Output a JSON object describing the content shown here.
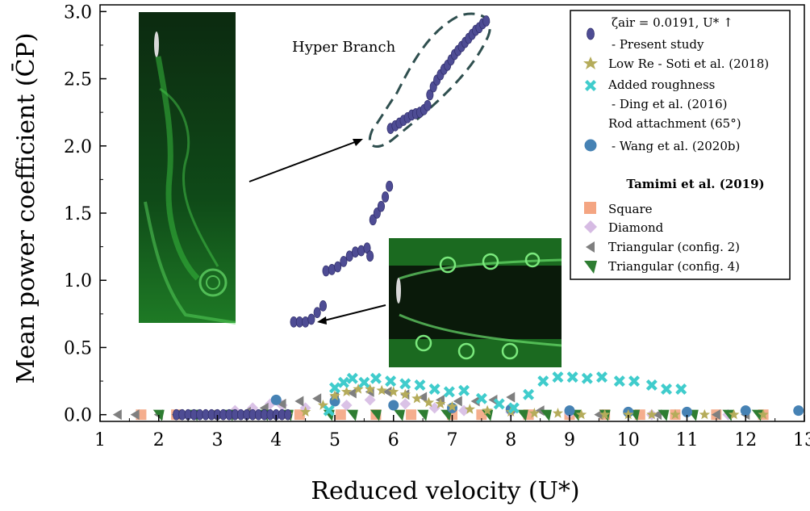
{
  "chart_data": {
    "type": "scatter",
    "xlabel": "Reduced velocity (U*)",
    "ylabel": "Mean power coefficient (C̄P)",
    "xlim": [
      1,
      13
    ],
    "ylim": [
      -0.05,
      3.05
    ],
    "x_ticks": [
      1,
      2,
      3,
      4,
      5,
      6,
      7,
      8,
      9,
      10,
      11,
      12,
      13
    ],
    "y_ticks": [
      0.0,
      0.5,
      1.0,
      1.5,
      2.0,
      2.5,
      3.0
    ],
    "x_tick_labels": [
      "1",
      "2",
      "3",
      "4",
      "5",
      "6",
      "7",
      "8",
      "9",
      "10",
      "11",
      "12",
      "13"
    ],
    "y_tick_labels": [
      "0.0",
      "0.5",
      "1.0",
      "1.5",
      "2.0",
      "2.5",
      "3.0"
    ],
    "grid": false,
    "legend_position": "top-right",
    "legend_header": "ζair = 0.0191, U* ↑",
    "legend_group_title": "Tamimi et al. (2019)",
    "annotations": [
      "Hyper Branch"
    ],
    "series": [
      {
        "name": "- Present study",
        "marker": "ellipse",
        "color": "#4e4c94",
        "points": [
          [
            2.3,
            0
          ],
          [
            2.4,
            0
          ],
          [
            2.5,
            0
          ],
          [
            2.6,
            0
          ],
          [
            2.7,
            0
          ],
          [
            2.8,
            0
          ],
          [
            2.9,
            0
          ],
          [
            3.0,
            0
          ],
          [
            3.1,
            0
          ],
          [
            3.2,
            0
          ],
          [
            3.3,
            0
          ],
          [
            3.4,
            0
          ],
          [
            3.5,
            0
          ],
          [
            3.6,
            0
          ],
          [
            3.7,
            0
          ],
          [
            3.8,
            0
          ],
          [
            3.9,
            0
          ],
          [
            4.0,
            0
          ],
          [
            4.1,
            0
          ],
          [
            4.2,
            0
          ],
          [
            4.3,
            0.69
          ],
          [
            4.4,
            0.69
          ],
          [
            4.5,
            0.69
          ],
          [
            4.6,
            0.71
          ],
          [
            4.7,
            0.76
          ],
          [
            4.8,
            0.81
          ],
          [
            4.85,
            1.07
          ],
          [
            4.95,
            1.08
          ],
          [
            5.05,
            1.1
          ],
          [
            5.15,
            1.14
          ],
          [
            5.25,
            1.18
          ],
          [
            5.35,
            1.21
          ],
          [
            5.45,
            1.22
          ],
          [
            5.55,
            1.24
          ],
          [
            5.6,
            1.18
          ],
          [
            5.65,
            1.45
          ],
          [
            5.72,
            1.5
          ],
          [
            5.79,
            1.55
          ],
          [
            5.86,
            1.62
          ],
          [
            5.93,
            1.7
          ],
          [
            5.95,
            2.13
          ],
          [
            6.03,
            2.15
          ],
          [
            6.1,
            2.17
          ],
          [
            6.17,
            2.19
          ],
          [
            6.24,
            2.21
          ],
          [
            6.31,
            2.23
          ],
          [
            6.38,
            2.24
          ],
          [
            6.45,
            2.25
          ],
          [
            6.52,
            2.27
          ],
          [
            6.58,
            2.3
          ],
          [
            6.62,
            2.38
          ],
          [
            6.68,
            2.44
          ],
          [
            6.74,
            2.49
          ],
          [
            6.8,
            2.53
          ],
          [
            6.86,
            2.57
          ],
          [
            6.92,
            2.6
          ],
          [
            6.98,
            2.64
          ],
          [
            7.04,
            2.68
          ],
          [
            7.1,
            2.71
          ],
          [
            7.16,
            2.74
          ],
          [
            7.22,
            2.77
          ],
          [
            7.28,
            2.8
          ],
          [
            7.34,
            2.83
          ],
          [
            7.4,
            2.86
          ],
          [
            7.46,
            2.88
          ],
          [
            7.52,
            2.91
          ],
          [
            7.58,
            2.93
          ]
        ]
      },
      {
        "name": "Low Re - Soti et al. (2018)",
        "marker": "star",
        "color": "#b5ac5b",
        "points": [
          [
            3.0,
            0
          ],
          [
            3.3,
            0
          ],
          [
            3.6,
            0
          ],
          [
            3.9,
            0
          ],
          [
            4.2,
            0
          ],
          [
            4.5,
            0.02
          ],
          [
            4.8,
            0.07
          ],
          [
            5.0,
            0.14
          ],
          [
            5.2,
            0.17
          ],
          [
            5.4,
            0.19
          ],
          [
            5.6,
            0.19
          ],
          [
            5.8,
            0.18
          ],
          [
            6.0,
            0.17
          ],
          [
            6.2,
            0.15
          ],
          [
            6.4,
            0.12
          ],
          [
            6.6,
            0.09
          ],
          [
            6.8,
            0.08
          ],
          [
            7.0,
            0.06
          ],
          [
            7.3,
            0.04
          ],
          [
            7.6,
            0.03
          ],
          [
            8.0,
            0.02
          ],
          [
            8.4,
            0.01
          ],
          [
            8.8,
            0.01
          ],
          [
            9.2,
            0
          ],
          [
            9.6,
            0
          ],
          [
            10.0,
            0
          ],
          [
            10.4,
            0
          ],
          [
            10.8,
            0
          ],
          [
            11.3,
            0
          ],
          [
            11.8,
            0
          ],
          [
            12.3,
            0
          ]
        ]
      },
      {
        "name": "Added roughness",
        "marker": "x",
        "color": "#40cccc",
        "points": [
          [
            4.9,
            0.03
          ],
          [
            5.0,
            0.2
          ],
          [
            5.15,
            0.24
          ],
          [
            5.3,
            0.27
          ],
          [
            5.5,
            0.24
          ],
          [
            5.7,
            0.27
          ],
          [
            5.95,
            0.25
          ],
          [
            6.2,
            0.23
          ],
          [
            6.45,
            0.22
          ],
          [
            6.7,
            0.19
          ],
          [
            6.95,
            0.17
          ],
          [
            7.2,
            0.18
          ],
          [
            7.5,
            0.12
          ],
          [
            7.8,
            0.08
          ],
          [
            8.05,
            0.05
          ],
          [
            8.3,
            0.15
          ],
          [
            8.55,
            0.25
          ],
          [
            8.8,
            0.28
          ],
          [
            9.05,
            0.28
          ],
          [
            9.3,
            0.27
          ],
          [
            9.55,
            0.28
          ],
          [
            9.85,
            0.25
          ],
          [
            10.1,
            0.25
          ],
          [
            10.4,
            0.22
          ],
          [
            10.65,
            0.19
          ],
          [
            10.9,
            0.19
          ]
        ]
      },
      {
        "name": "- Wang et al. (2020b)",
        "marker": "circle",
        "color": "#4682b4",
        "points": [
          [
            4.0,
            0.11
          ],
          [
            5.0,
            0.1
          ],
          [
            6.0,
            0.07
          ],
          [
            7.0,
            0.05
          ],
          [
            8.0,
            0.04
          ],
          [
            9.0,
            0.03
          ],
          [
            10.0,
            0.02
          ],
          [
            11.0,
            0.02
          ],
          [
            12.0,
            0.03
          ],
          [
            12.9,
            0.03
          ]
        ]
      },
      {
        "name": "Square",
        "marker": "square",
        "color": "#f4a582",
        "points": [
          [
            1.7,
            0
          ],
          [
            2.3,
            0
          ],
          [
            4.4,
            0
          ],
          [
            5.1,
            0
          ],
          [
            5.7,
            0
          ],
          [
            6.3,
            0
          ],
          [
            7.0,
            0
          ],
          [
            7.5,
            0
          ],
          [
            8.3,
            0
          ],
          [
            9.0,
            0
          ],
          [
            9.6,
            0
          ],
          [
            10.2,
            0
          ],
          [
            10.8,
            0
          ],
          [
            11.5,
            0
          ],
          [
            12.3,
            0
          ]
        ]
      },
      {
        "name": "Diamond",
        "marker": "diamond",
        "color": "#d6bbe3",
        "points": [
          [
            2.5,
            0
          ],
          [
            3.3,
            0.03
          ],
          [
            3.6,
            0.05
          ],
          [
            3.9,
            0.08
          ],
          [
            4.1,
            0.07
          ],
          [
            4.5,
            0.05
          ],
          [
            5.2,
            0.07
          ],
          [
            5.6,
            0.11
          ],
          [
            6.2,
            0.08
          ],
          [
            6.7,
            0.05
          ],
          [
            7.2,
            0.03
          ],
          [
            8.0,
            0.02
          ],
          [
            9.0,
            0.01
          ],
          [
            10.4,
            0
          ],
          [
            11.7,
            0
          ]
        ]
      },
      {
        "name": "Triangular (config. 2)",
        "marker": "tri-left",
        "color": "#7f7f7f",
        "points": [
          [
            1.3,
            0
          ],
          [
            1.6,
            0
          ],
          [
            2.0,
            0
          ],
          [
            2.3,
            0
          ],
          [
            2.6,
            0
          ],
          [
            2.9,
            0
          ],
          [
            3.2,
            0
          ],
          [
            3.5,
            0.02
          ],
          [
            3.8,
            0.05
          ],
          [
            4.1,
            0.08
          ],
          [
            4.4,
            0.1
          ],
          [
            4.7,
            0.12
          ],
          [
            5.0,
            0.14
          ],
          [
            5.3,
            0.16
          ],
          [
            5.6,
            0.17
          ],
          [
            5.9,
            0.17
          ],
          [
            6.2,
            0.15
          ],
          [
            6.5,
            0.13
          ],
          [
            6.8,
            0.11
          ],
          [
            7.1,
            0.1
          ],
          [
            7.4,
            0.1
          ],
          [
            7.7,
            0.11
          ],
          [
            8.0,
            0.13
          ],
          [
            8.5,
            0.03
          ],
          [
            9.5,
            0
          ],
          [
            10.5,
            0
          ],
          [
            11.5,
            0
          ],
          [
            12.0,
            0
          ]
        ]
      },
      {
        "name": "Triangular (config. 4)",
        "marker": "tri-down-left",
        "color": "#2e7d32",
        "points": [
          [
            2.0,
            0
          ],
          [
            2.6,
            0
          ],
          [
            3.2,
            0
          ],
          [
            3.8,
            0
          ],
          [
            4.2,
            0
          ],
          [
            4.9,
            0
          ],
          [
            5.3,
            0
          ],
          [
            5.7,
            0
          ],
          [
            6.1,
            0
          ],
          [
            6.5,
            0
          ],
          [
            6.9,
            0
          ],
          [
            7.6,
            0
          ],
          [
            8.2,
            0
          ],
          [
            8.6,
            0
          ],
          [
            9.1,
            0
          ],
          [
            9.6,
            0
          ],
          [
            10.1,
            0
          ],
          [
            10.6,
            0
          ],
          [
            11.1,
            0
          ],
          [
            11.7,
            0
          ],
          [
            12.2,
            0
          ]
        ]
      }
    ],
    "legend_entries": [
      {
        "key": "header",
        "label": "ζair = 0.0191, U* ↑"
      },
      {
        "key": "s0",
        "label": "- Present study"
      },
      {
        "key": "s1",
        "label": "Low Re - Soti et al. (2018)"
      },
      {
        "key": "s2",
        "label": "Added roughness"
      },
      {
        "key": "s2b",
        "label": "- Ding et al. (2016)"
      },
      {
        "key": "s3a",
        "label": "Rod attachment (65°)"
      },
      {
        "key": "s3",
        "label": "- Wang et al. (2020b)"
      },
      {
        "key": "group",
        "label": "Tamimi et al. (2019)"
      },
      {
        "key": "s4",
        "label": "Square"
      },
      {
        "key": "s5",
        "label": "Diamond"
      },
      {
        "key": "s6",
        "label": "Triangular (config. 2)"
      },
      {
        "key": "s7",
        "label": "Triangular (config. 4)"
      }
    ]
  }
}
